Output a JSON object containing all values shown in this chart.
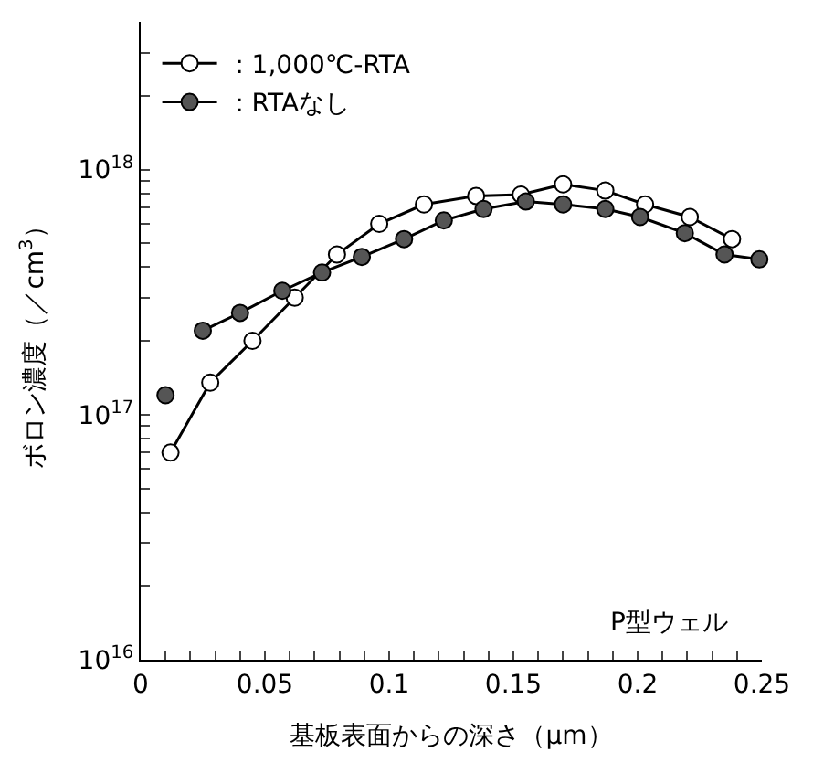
{
  "chart_data": {
    "type": "line",
    "xlabel": "基板表面からの深さ（μm）",
    "ylabel": "ボロン濃度（／cm$^{3}$）",
    "annotations": [
      "P型ウェル"
    ],
    "log": "y",
    "legend": "top left",
    "marker": "circle",
    "xlim": [
      0,
      0.25
    ],
    "xticks": [
      0,
      {
        "value": 0.01,
        "label": null
      },
      {
        "value": 0.02,
        "label": null
      },
      {
        "value": 0.03,
        "label": null
      },
      {
        "value": 0.04,
        "label": null
      },
      0.05,
      {
        "value": 0.06,
        "label": null
      },
      {
        "value": 0.07,
        "label": null
      },
      {
        "value": 0.08,
        "label": null
      },
      {
        "value": 0.09,
        "label": null
      },
      0.1,
      {
        "value": 0.11,
        "label": null
      },
      {
        "value": 0.12,
        "label": null
      },
      {
        "value": 0.13,
        "label": null
      },
      {
        "value": 0.14,
        "label": null
      },
      0.15,
      {
        "value": 0.16,
        "label": null
      },
      {
        "value": 0.17,
        "label": null
      },
      {
        "value": 0.18,
        "label": null
      },
      {
        "value": 0.19,
        "label": null
      },
      0.2,
      {
        "value": 0.21,
        "label": null
      },
      {
        "value": 0.22,
        "label": null
      },
      {
        "value": 0.23,
        "label": null
      },
      {
        "value": 0.24,
        "label": null
      },
      0.25
    ],
    "ylim": [
      1e+16,
      4e+18
    ],
    "yticks": [
      {
        "value": 1e+16,
        "label": "10$^{16}$"
      },
      {
        "value": 2e+16,
        "label": null
      },
      {
        "value": 3e+16,
        "label": null
      },
      {
        "value": 4e+16,
        "label": null
      },
      {
        "value": 5e+16,
        "label": null
      },
      {
        "value": 6e+16,
        "label": null
      },
      {
        "value": 7e+16,
        "label": null
      },
      {
        "value": 8e+16,
        "label": null
      },
      {
        "value": 9e+16,
        "label": null
      },
      {
        "value": 1e+17,
        "label": "10$^{17}$"
      },
      {
        "value": 2e+17,
        "label": null
      },
      {
        "value": 3e+17,
        "label": null
      },
      {
        "value": 4e+17,
        "label": null
      },
      {
        "value": 5e+17,
        "label": null
      },
      {
        "value": 6e+17,
        "label": null
      },
      {
        "value": 7e+17,
        "label": null
      },
      {
        "value": 8e+17,
        "label": null
      },
      {
        "value": 9e+17,
        "label": null
      },
      {
        "value": 1e+18,
        "label": "10$^{18}$"
      },
      {
        "value": 2e+18,
        "label": null
      },
      {
        "value": 3e+18,
        "label": null
      }
    ],
    "series": [
      {
        "name": "：1,000℃-RTA",
        "color": "#ffffff",
        "x": [
          0.012,
          0.028,
          0.045,
          0.062,
          0.079,
          0.096,
          0.114,
          0.135,
          0.153,
          0.17,
          0.187,
          0.203,
          0.221,
          0.238
        ],
        "values": [
          7e+16,
          1.35e+17,
          2e+17,
          3e+17,
          4.5e+17,
          6e+17,
          7.2e+17,
          7.8e+17,
          7.9e+17,
          8.7e+17,
          8.2e+17,
          7.2e+17,
          6.4e+17,
          5.2e+17
        ]
      },
      {
        "name": "：RTAなし",
        "color": "#555555",
        "x": [
          0.01,
          0.017,
          0.025,
          0.04,
          0.057,
          0.073,
          0.089,
          0.106,
          0.122,
          0.138,
          0.155,
          0.17,
          0.187,
          0.201,
          0.219,
          0.235,
          0.249
        ],
        "values": [
          1.2e+17,
          null,
          2.2e+17,
          2.6e+17,
          3.2e+17,
          3.8e+17,
          4.4e+17,
          5.2e+17,
          6.2e+17,
          6.9e+17,
          7.4e+17,
          7.2e+17,
          6.9e+17,
          6.4e+17,
          5.5e+17,
          4.5e+17,
          4.3e+17
        ]
      }
    ]
  }
}
